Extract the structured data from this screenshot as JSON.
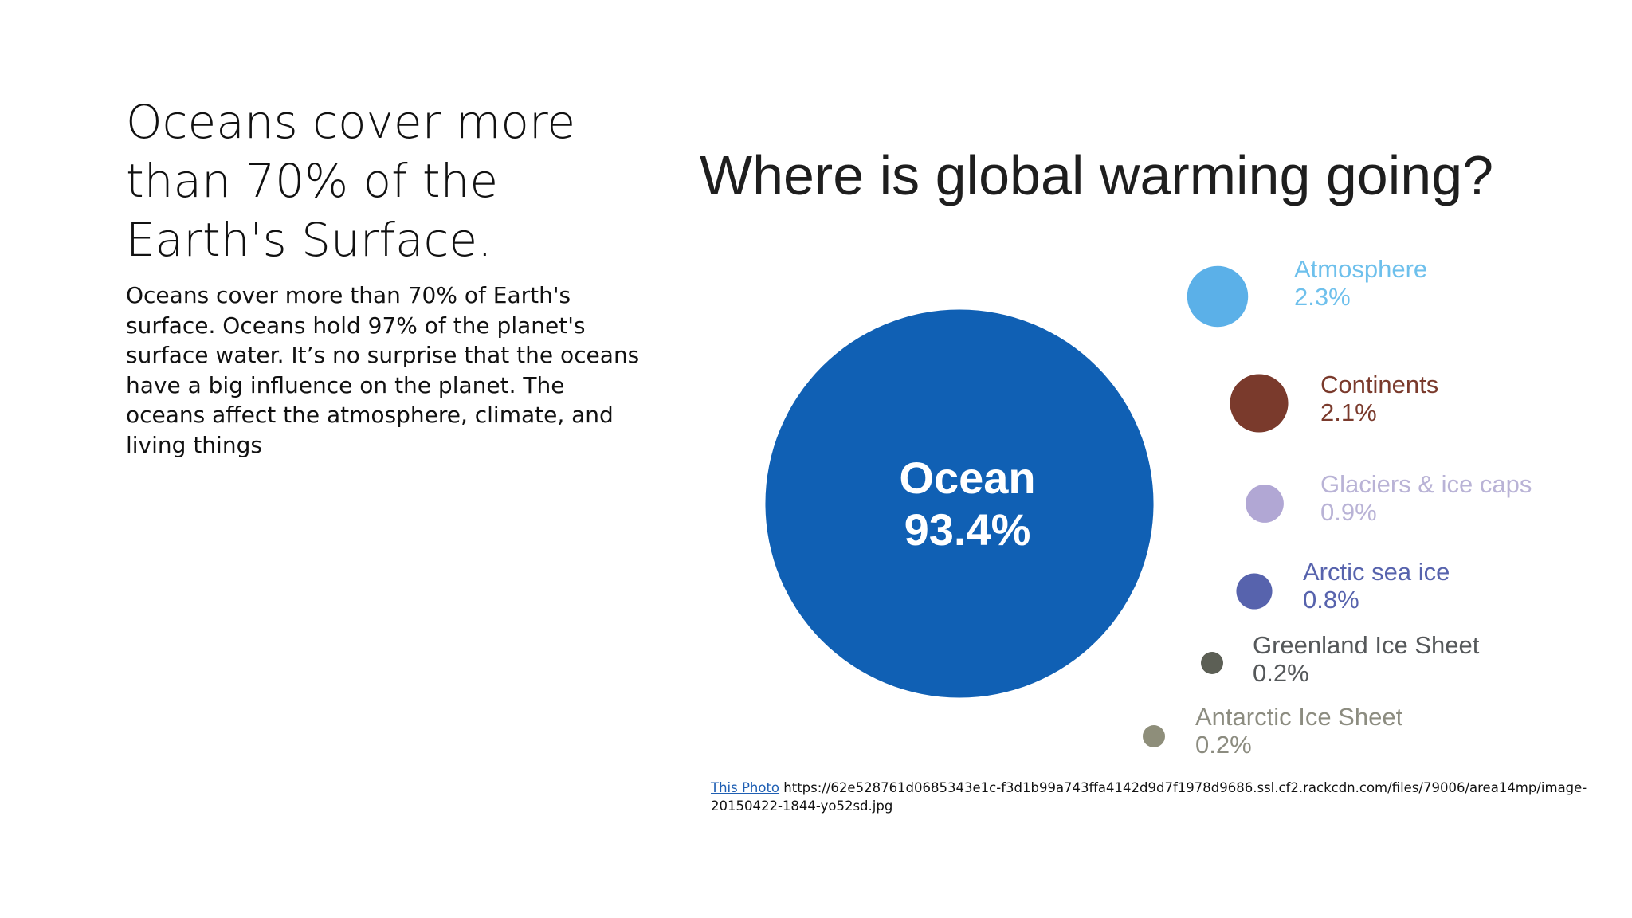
{
  "slide": {
    "title": "Oceans cover more than 70% of the Earth's Surface.",
    "body": "Oceans cover more than 70% of Earth's surface. Oceans hold 97% of the planet's surface water. It’s no surprise that the oceans have a big influence on the planet. The oceans affect the atmosphere, climate, and living things"
  },
  "chart_data": {
    "type": "bubble",
    "title": "Where is global warming going?",
    "unit": "%",
    "categories": [
      "Ocean",
      "Atmosphere",
      "Continents",
      "Glaciers & ice caps",
      "Arctic sea ice",
      "Greenland Ice Sheet",
      "Antarctic Ice Sheet"
    ],
    "values": [
      93.4,
      2.3,
      2.1,
      0.9,
      0.8,
      0.2,
      0.2
    ],
    "value_labels": [
      "93.4%",
      "2.3%",
      "2.1%",
      "0.9%",
      "0.8%",
      "0.2%",
      "0.2%"
    ],
    "colors": [
      "#1060b4",
      "#5bb0e8",
      "#7a3a2c",
      "#b1a7d4",
      "#5763ad",
      "#5c5f55",
      "#8e8e7a"
    ],
    "label_colors": [
      "#ffffff",
      "#6ec0ec",
      "#7a3a2c",
      "#b9b3d6",
      "#5763ad",
      "#55585a",
      "#8c8c80"
    ]
  },
  "credit": {
    "link_text": "This Photo",
    "url_text": "https://62e528761d0685343e1c-f3d1b99a743ffa4142d9d7f1978d9686.ssl.cf2.rackcdn.com/files/79006/area14mp/image-20150422-1844-yo52sd.jpg"
  }
}
